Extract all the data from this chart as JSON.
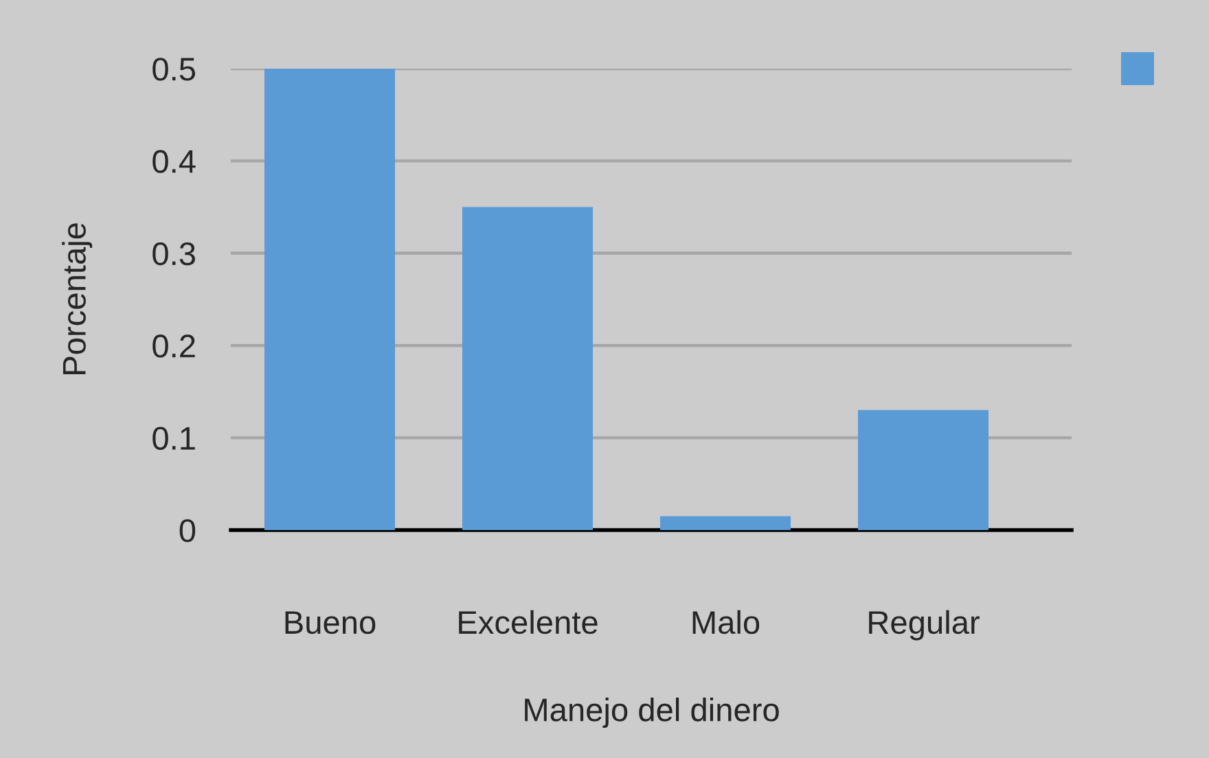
{
  "chart_data": {
    "type": "bar",
    "xlabel": "Manejo del dinero",
    "ylabel": "Porcentaje",
    "categories": [
      "Bueno",
      "Excelente",
      "Malo",
      "Regular"
    ],
    "series": [
      {
        "color": "#5b9bd5",
        "values": [
          0.5,
          0.35,
          0.015,
          0.13
        ]
      }
    ],
    "ylim": [
      0,
      0.5
    ],
    "yticks": [
      0,
      0.1,
      0.2,
      0.3,
      0.4,
      0.5
    ],
    "grid": "y"
  }
}
